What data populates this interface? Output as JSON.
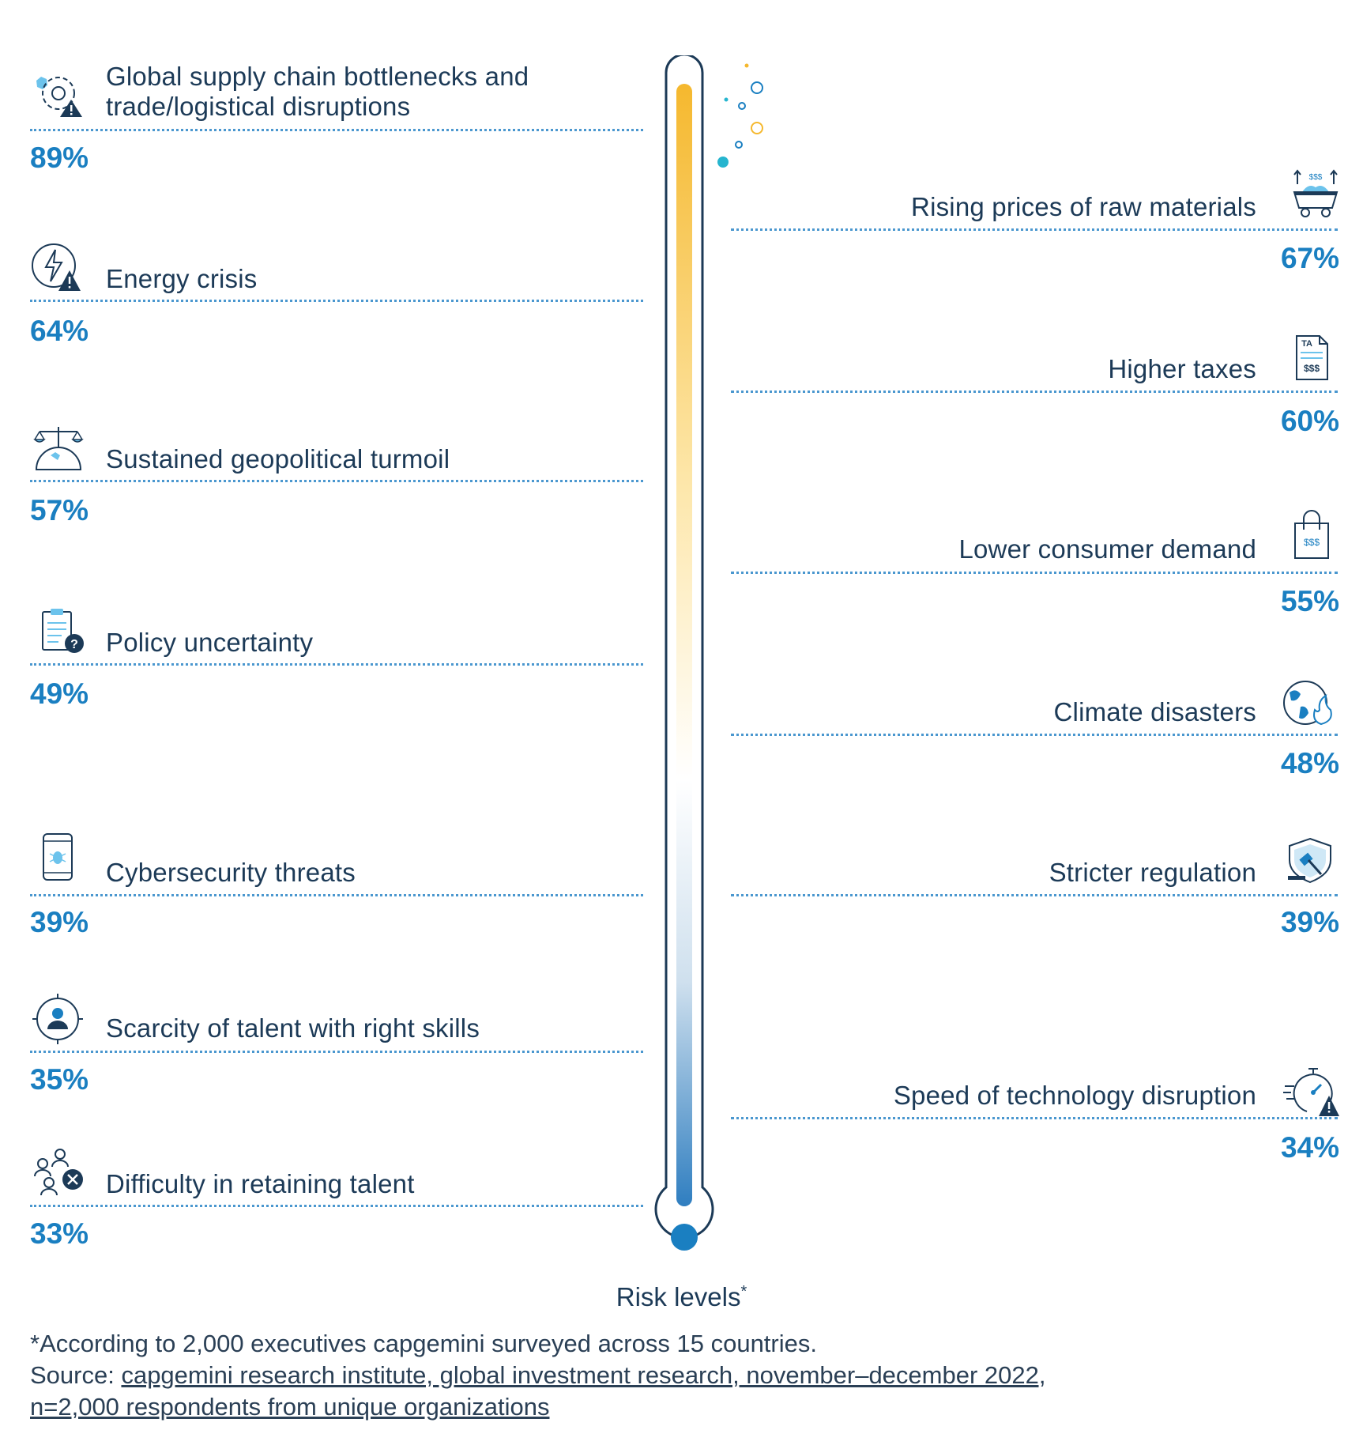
{
  "left_items": [
    {
      "lines": [
        "Global supply chain bottlenecks and",
        "trade/logistical disruptions"
      ],
      "value": "89%",
      "icon": "supply-chain-warning-icon"
    },
    {
      "lines": [
        "Energy crisis"
      ],
      "value": "64%",
      "icon": "energy-crisis-icon"
    },
    {
      "lines": [
        "Sustained geopolitical turmoil"
      ],
      "value": "57%",
      "icon": "geopolitical-scale-icon"
    },
    {
      "lines": [
        "Policy uncertainty"
      ],
      "value": "49%",
      "icon": "policy-clipboard-icon"
    },
    {
      "lines": [
        "Cybersecurity threats"
      ],
      "value": "39%",
      "icon": "mobile-bug-icon"
    },
    {
      "lines": [
        "Scarcity of talent with right skills"
      ],
      "value": "35%",
      "icon": "talent-target-icon"
    },
    {
      "lines": [
        "Difficulty in retaining talent"
      ],
      "value": "33%",
      "icon": "people-remove-icon"
    }
  ],
  "right_items": [
    {
      "lines": [
        "Rising prices of raw materials"
      ],
      "value": "67%",
      "icon": "raw-materials-cart-icon"
    },
    {
      "lines": [
        "Higher taxes"
      ],
      "value": "60%",
      "icon": "tax-document-icon"
    },
    {
      "lines": [
        "Lower consumer demand"
      ],
      "value": "55%",
      "icon": "shopping-bag-icon"
    },
    {
      "lines": [
        "Climate disasters"
      ],
      "value": "48%",
      "icon": "globe-fire-icon"
    },
    {
      "lines": [
        "Stricter regulation"
      ],
      "value": "39%",
      "icon": "regulation-gavel-icon"
    },
    {
      "lines": [
        "Speed of technology disruption"
      ],
      "value": "34%",
      "icon": "stopwatch-warning-icon"
    }
  ],
  "caption": {
    "text": "Risk levels",
    "mark": "*"
  },
  "footnote": {
    "line1": "*According to 2,000 executives capgemini surveyed across 15 countries.",
    "source_prefix": "Source: ",
    "source_link_line1": "capgemini research institute, global investment research, november–december 2022,",
    "source_link_line2": "n=2,000 respondents from unique organizations"
  },
  "colors": {
    "label": "#1c3a57",
    "value": "#1a7fc1",
    "rule": "#4a97cf",
    "thermo_top": "#f5b82e",
    "thermo_bottom": "#2f7ec0"
  }
}
